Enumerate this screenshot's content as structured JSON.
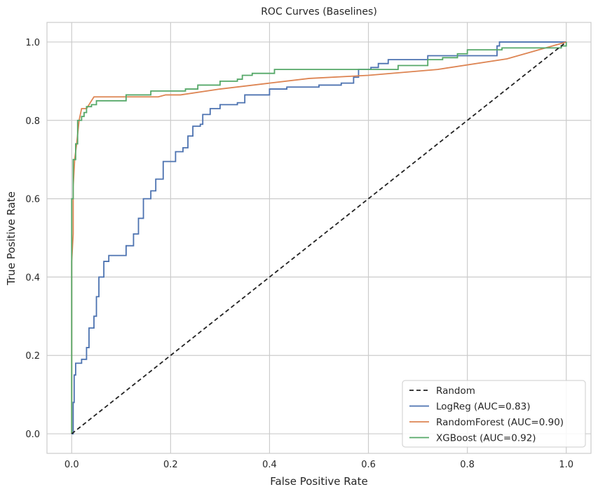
{
  "chart_data": {
    "type": "line",
    "title": "ROC Curves (Baselines)",
    "xlabel": "False Positive Rate",
    "ylabel": "True Positive Rate",
    "xlim": [
      -0.05,
      1.05
    ],
    "ylim": [
      -0.05,
      1.05
    ],
    "xticks": [
      "0.0",
      "0.2",
      "0.4",
      "0.6",
      "0.8",
      "1.0"
    ],
    "yticks": [
      "0.0",
      "0.2",
      "0.4",
      "0.6",
      "0.8",
      "1.0"
    ],
    "grid": true,
    "legend_position": "bottom-right",
    "series": [
      {
        "name": "Random",
        "color": "#222222",
        "style": "dashed",
        "interp": "linear",
        "x": [
          0,
          1
        ],
        "y": [
          0,
          1
        ]
      },
      {
        "name": "LogReg (AUC=0.83)",
        "color": "#4c72b0",
        "style": "solid",
        "interp": "step",
        "x": [
          0,
          0.003,
          0.005,
          0.008,
          0.02,
          0.03,
          0.035,
          0.045,
          0.05,
          0.055,
          0.065,
          0.075,
          0.09,
          0.11,
          0.125,
          0.135,
          0.145,
          0.16,
          0.17,
          0.185,
          0.2,
          0.21,
          0.225,
          0.235,
          0.245,
          0.26,
          0.265,
          0.28,
          0.3,
          0.335,
          0.35,
          0.385,
          0.4,
          0.435,
          0.5,
          0.545,
          0.57,
          0.58,
          0.605,
          0.62,
          0.64,
          0.72,
          0.78,
          0.86,
          0.865,
          1
        ],
        "y": [
          0,
          0.08,
          0.15,
          0.18,
          0.19,
          0.22,
          0.27,
          0.3,
          0.35,
          0.4,
          0.44,
          0.455,
          0.455,
          0.48,
          0.51,
          0.55,
          0.6,
          0.62,
          0.65,
          0.695,
          0.695,
          0.72,
          0.73,
          0.76,
          0.785,
          0.79,
          0.815,
          0.83,
          0.84,
          0.845,
          0.865,
          0.865,
          0.88,
          0.885,
          0.89,
          0.895,
          0.91,
          0.93,
          0.935,
          0.945,
          0.955,
          0.965,
          0.965,
          0.99,
          1.0,
          1.0
        ]
      },
      {
        "name": "RandomForest (AUC=0.90)",
        "color": "#dd8452",
        "style": "solid",
        "interp": "linear",
        "x": [
          0,
          0,
          0.003,
          0.003,
          0.006,
          0.01,
          0.015,
          0.02,
          0.03,
          0.04,
          0.045,
          0.175,
          0.19,
          0.22,
          0.3,
          0.4,
          0.48,
          0.6,
          0.74,
          0.88,
          1
        ],
        "y": [
          0,
          0.44,
          0.51,
          0.63,
          0.7,
          0.74,
          0.8,
          0.83,
          0.83,
          0.85,
          0.86,
          0.86,
          0.865,
          0.865,
          0.88,
          0.895,
          0.907,
          0.915,
          0.93,
          0.957,
          1
        ]
      },
      {
        "name": "XGBoost (AUC=0.92)",
        "color": "#55a868",
        "style": "solid",
        "interp": "step",
        "x": [
          0,
          0,
          0.003,
          0.008,
          0.012,
          0.02,
          0.025,
          0.03,
          0.04,
          0.05,
          0.11,
          0.16,
          0.23,
          0.255,
          0.3,
          0.335,
          0.345,
          0.365,
          0.41,
          0.55,
          0.66,
          0.72,
          0.75,
          0.78,
          0.8,
          0.87,
          0.99,
          1
        ],
        "y": [
          0,
          0.6,
          0.7,
          0.74,
          0.8,
          0.81,
          0.82,
          0.835,
          0.84,
          0.85,
          0.865,
          0.875,
          0.88,
          0.89,
          0.9,
          0.905,
          0.915,
          0.92,
          0.93,
          0.93,
          0.94,
          0.955,
          0.96,
          0.97,
          0.98,
          0.985,
          0.99,
          1
        ]
      }
    ]
  }
}
